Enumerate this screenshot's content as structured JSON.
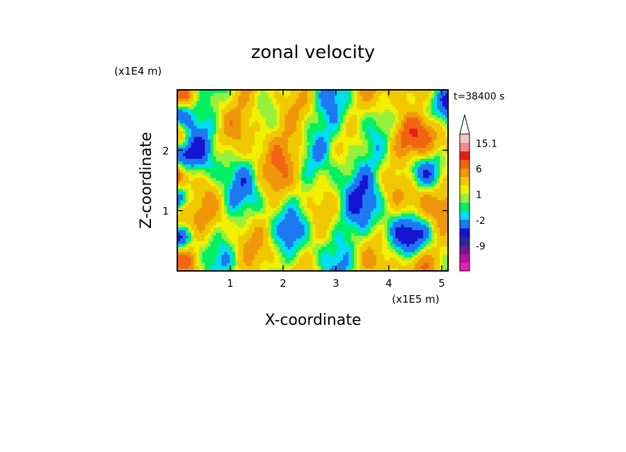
{
  "chart_data": {
    "type": "heatmap",
    "title": "zonal velocity",
    "xlabel": "X-coordinate",
    "ylabel": "Z-coordinate",
    "x_units": "(x1E5 m)",
    "y_units": "(x1E4 m)",
    "time_label": "t=38400 s",
    "xlim": [
      0,
      5.12
    ],
    "ylim": [
      0,
      3.0
    ],
    "x_ticks": [
      1,
      2,
      3,
      4,
      5
    ],
    "x_tick_labels": [
      "1",
      "2",
      "3",
      "4",
      "5"
    ],
    "y_ticks": [
      1,
      2
    ],
    "y_tick_labels": [
      "1",
      "2"
    ],
    "colorbar": {
      "levels": [
        -15,
        -12,
        -9,
        -6,
        -4,
        -2,
        -1,
        0,
        1,
        2,
        4,
        6,
        9,
        12,
        15.1
      ],
      "colors": [
        "#e61eb4",
        "#b414a0",
        "#78148c",
        "#2828a0",
        "#1414d2",
        "#1e78f0",
        "#00dcf0",
        "#00f064",
        "#96f03c",
        "#f0f000",
        "#f0c800",
        "#f0960a",
        "#f06414",
        "#e61e14",
        "#f08c8c",
        "#fac8c8"
      ],
      "tick_labels": [
        "15.1",
        "6",
        "1",
        "-2",
        "-9"
      ],
      "tick_values": [
        15.1,
        6,
        1,
        -2,
        -9
      ],
      "extend_max": true
    }
  }
}
